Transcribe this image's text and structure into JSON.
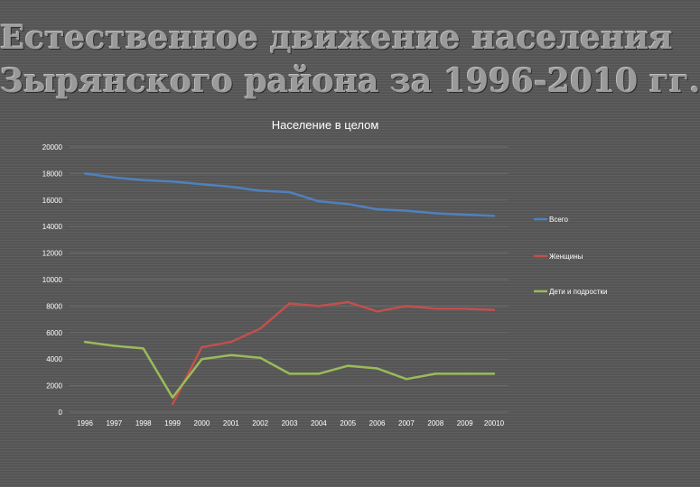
{
  "slide": {
    "title_line1": "Естественное движение населения",
    "title_line2": "Зырянского района за 1996-2010 гг."
  },
  "chart_data": {
    "type": "line",
    "title": "Население в целом",
    "categories": [
      "1996",
      "1997",
      "1998",
      "1999",
      "2000",
      "2001",
      "2002",
      "2003",
      "2004",
      "2005",
      "2006",
      "2007",
      "2008",
      "2009",
      "20010"
    ],
    "ylim": [
      0,
      20000
    ],
    "yticks": [
      0,
      2000,
      4000,
      6000,
      8000,
      10000,
      12000,
      14000,
      16000,
      18000,
      20000
    ],
    "grid": true,
    "legend_position": "right",
    "series": [
      {
        "name": "Всего",
        "color": "#4f81bd",
        "values": [
          18000,
          17700,
          17500,
          17400,
          17200,
          17000,
          16700,
          16600,
          15900,
          15700,
          15300,
          15200,
          15000,
          14900,
          14800
        ]
      },
      {
        "name": "Женщины",
        "color": "#c0504d",
        "values": [
          null,
          null,
          null,
          600,
          4900,
          5300,
          6300,
          8200,
          8000,
          8300,
          7600,
          8000,
          7800,
          7800,
          7700
        ]
      },
      {
        "name": "Дети и подростки",
        "color": "#9bbb59",
        "values": [
          5300,
          5000,
          4800,
          1100,
          4000,
          4300,
          4100,
          2900,
          2900,
          3500,
          3300,
          2500,
          2900,
          2900,
          2900
        ]
      }
    ]
  }
}
